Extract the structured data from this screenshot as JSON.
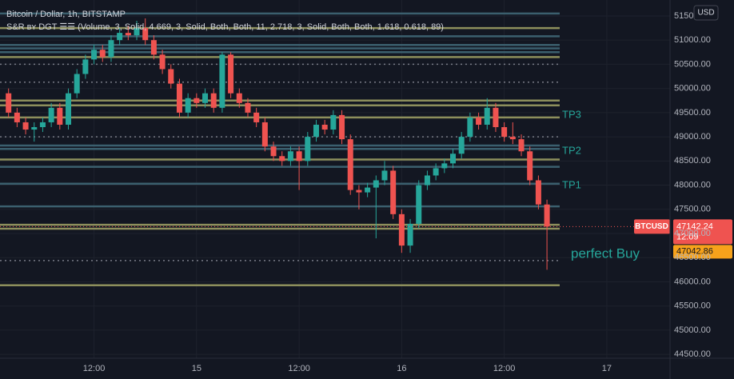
{
  "chart_data": {
    "type": "candlestick",
    "title": "Bitcoin / Dollar, 1h, BITSTAMP",
    "subtitle": "S&R ʙʏ DGT ☰☰ (Volume, 3, Solid, 4.669, 3, Solid, Both, Both, 11, 2.718, 3, Solid, Both, Both, 1.618, 0.618, 89)",
    "currency": "USD",
    "x": [
      2,
      3,
      4,
      5,
      6,
      7,
      8,
      9,
      10,
      11,
      12,
      13,
      14,
      15,
      16,
      17,
      18,
      19,
      20,
      21,
      22,
      23,
      24,
      25,
      26,
      27,
      28,
      29,
      30,
      31,
      32,
      33,
      34,
      35,
      36,
      37,
      38,
      39,
      40,
      41,
      42,
      43,
      44,
      45,
      46,
      47,
      48,
      49,
      50,
      51,
      52,
      53,
      54,
      55,
      56,
      57,
      58,
      59,
      60,
      61,
      62,
      63,
      64,
      65
    ],
    "series": [
      {
        "name": "BTCUSD",
        "up_color": "#26a69a",
        "down_color": "#ef5350",
        "open": [
          49900,
          49500,
          49300,
          49150,
          49200,
          49300,
          49600,
          49250,
          49900,
          50300,
          50600,
          50800,
          50650,
          51000,
          51150,
          51100,
          51250,
          51000,
          50700,
          50400,
          50100,
          49500,
          49800,
          49700,
          49900,
          49600,
          50700,
          49900,
          49700,
          49500,
          49300,
          48800,
          48600,
          48500,
          48700,
          48500,
          49000,
          49250,
          49150,
          49450,
          48950,
          47900,
          47850,
          47950,
          48100,
          48300,
          47400,
          46750,
          47200,
          48000,
          48200,
          48350,
          48450,
          48650,
          49000,
          49400,
          49250,
          49600,
          49200,
          49000,
          48950,
          48700,
          48100,
          47600
        ],
        "high": [
          50000,
          49600,
          49400,
          49300,
          49400,
          49700,
          49700,
          50000,
          50400,
          50700,
          50900,
          50900,
          51100,
          51250,
          51300,
          51400,
          51450,
          51100,
          50800,
          50500,
          50200,
          49900,
          49900,
          50000,
          50000,
          50750,
          50750,
          50000,
          49800,
          49600,
          49400,
          48900,
          48700,
          48800,
          48800,
          49100,
          49350,
          49350,
          49550,
          49550,
          49050,
          48000,
          48050,
          48200,
          48500,
          48400,
          47500,
          47300,
          48100,
          48300,
          48450,
          48550,
          48750,
          49100,
          49500,
          49500,
          49800,
          49700,
          49300,
          49300,
          49050,
          48800,
          48200,
          47700
        ],
        "low": [
          49400,
          49200,
          49050,
          48900,
          49100,
          49200,
          49150,
          49150,
          49800,
          50200,
          50500,
          50550,
          50550,
          50900,
          51000,
          51000,
          50900,
          50600,
          50300,
          50000,
          49400,
          49400,
          49600,
          49600,
          49500,
          49500,
          49800,
          49600,
          49400,
          49200,
          48700,
          48500,
          48400,
          48400,
          47900,
          48400,
          48900,
          49050,
          49050,
          48850,
          47800,
          47500,
          47750,
          46900,
          48000,
          47300,
          46600,
          46600,
          47100,
          47900,
          48100,
          48250,
          48350,
          48550,
          48900,
          49150,
          49150,
          49100,
          48900,
          48850,
          48600,
          48000,
          47500,
          46250
        ],
        "close": [
          49500,
          49300,
          49150,
          49200,
          49300,
          49600,
          49250,
          49900,
          50300,
          50600,
          50800,
          50650,
          51000,
          51150,
          51100,
          51250,
          51000,
          50700,
          50400,
          50100,
          49500,
          49800,
          49700,
          49900,
          49600,
          50700,
          49900,
          49700,
          49500,
          49300,
          48800,
          48600,
          48500,
          48700,
          48500,
          49000,
          49250,
          49150,
          49450,
          48950,
          47900,
          47850,
          47950,
          48100,
          48300,
          47400,
          46750,
          47200,
          48000,
          48200,
          48350,
          48450,
          48650,
          49000,
          49400,
          49250,
          49600,
          49200,
          49000,
          48950,
          48700,
          48100,
          47600,
          47142.24
        ]
      }
    ],
    "last_price": 47142.24,
    "countdown": "12:09",
    "second_price": 47042.86,
    "xlim": [
      1,
      79.4
    ],
    "xticks": [
      {
        "value": 12,
        "label": "12:00"
      },
      {
        "value": 24,
        "label": "15"
      },
      {
        "value": 36,
        "label": "12:00"
      },
      {
        "value": 48,
        "label": "16"
      },
      {
        "value": 60,
        "label": "12:00"
      },
      {
        "value": 72,
        "label": "17"
      }
    ],
    "ylim": [
      44420,
      51830
    ],
    "yticks": [
      {
        "value": 51500,
        "label": "51500.00"
      },
      {
        "value": 51000,
        "label": "51000.00"
      },
      {
        "value": 50500,
        "label": "50500.00"
      },
      {
        "value": 50000,
        "label": "50000.00"
      },
      {
        "value": 49500,
        "label": "49500.00"
      },
      {
        "value": 49000,
        "label": "49000.00"
      },
      {
        "value": 48500,
        "label": "48500.00"
      },
      {
        "value": 48000,
        "label": "48000.00"
      },
      {
        "value": 47500,
        "label": "47500.00"
      },
      {
        "value": 47000,
        "label": "47000.00"
      },
      {
        "value": 46500,
        "label": "46500.00"
      },
      {
        "value": 46000,
        "label": "46000.00"
      },
      {
        "value": 45500,
        "label": "45500.00"
      },
      {
        "value": 45000,
        "label": "45000.00"
      },
      {
        "value": 44500,
        "label": "44500.00"
      }
    ],
    "grid": true,
    "levels": [
      {
        "value": 51550,
        "color": "#3b5f6e",
        "dotted": false
      },
      {
        "value": 51250,
        "color": "#8d8f5c",
        "dotted": false
      },
      {
        "value": 51080,
        "color": "#3b5f6e",
        "dotted": false
      },
      {
        "value": 50900,
        "color": "#3b5f6e",
        "dotted": false
      },
      {
        "value": 50830,
        "color": "#3b5f6e",
        "dotted": false
      },
      {
        "value": 50750,
        "color": "#3b5f6e",
        "dotted": false
      },
      {
        "value": 50650,
        "color": "#8d8f5c",
        "dotted": false
      },
      {
        "value": 50500,
        "color": "#787b86",
        "dotted": true
      },
      {
        "value": 50130,
        "color": "#787b86",
        "dotted": true
      },
      {
        "value": 49750,
        "color": "#8d8f5c",
        "dotted": false
      },
      {
        "value": 49650,
        "color": "#8d8f5c",
        "dotted": false
      },
      {
        "value": 49400,
        "color": "#8d8f5c",
        "dotted": false
      },
      {
        "value": 49000,
        "color": "#787b86",
        "dotted": true
      },
      {
        "value": 48820,
        "color": "#3b5f6e",
        "dotted": false
      },
      {
        "value": 48750,
        "color": "#3b5f6e",
        "dotted": false
      },
      {
        "value": 48530,
        "color": "#8d8f5c",
        "dotted": false
      },
      {
        "value": 48380,
        "color": "#3b5f6e",
        "dotted": false
      },
      {
        "value": 48030,
        "color": "#3b5f6e",
        "dotted": false
      },
      {
        "value": 47560,
        "color": "#3b5f6e",
        "dotted": false
      },
      {
        "value": 47180,
        "color": "#8d8f5c",
        "dotted": false
      },
      {
        "value": 47100,
        "color": "#8d8f5c",
        "dotted": false
      },
      {
        "value": 46440,
        "color": "#787b86",
        "dotted": true
      },
      {
        "value": 45930,
        "color": "#8d8f5c",
        "dotted": false
      }
    ],
    "annotations": [
      "TP3",
      "TP2",
      "TP1",
      "perfect Buy"
    ]
  }
}
